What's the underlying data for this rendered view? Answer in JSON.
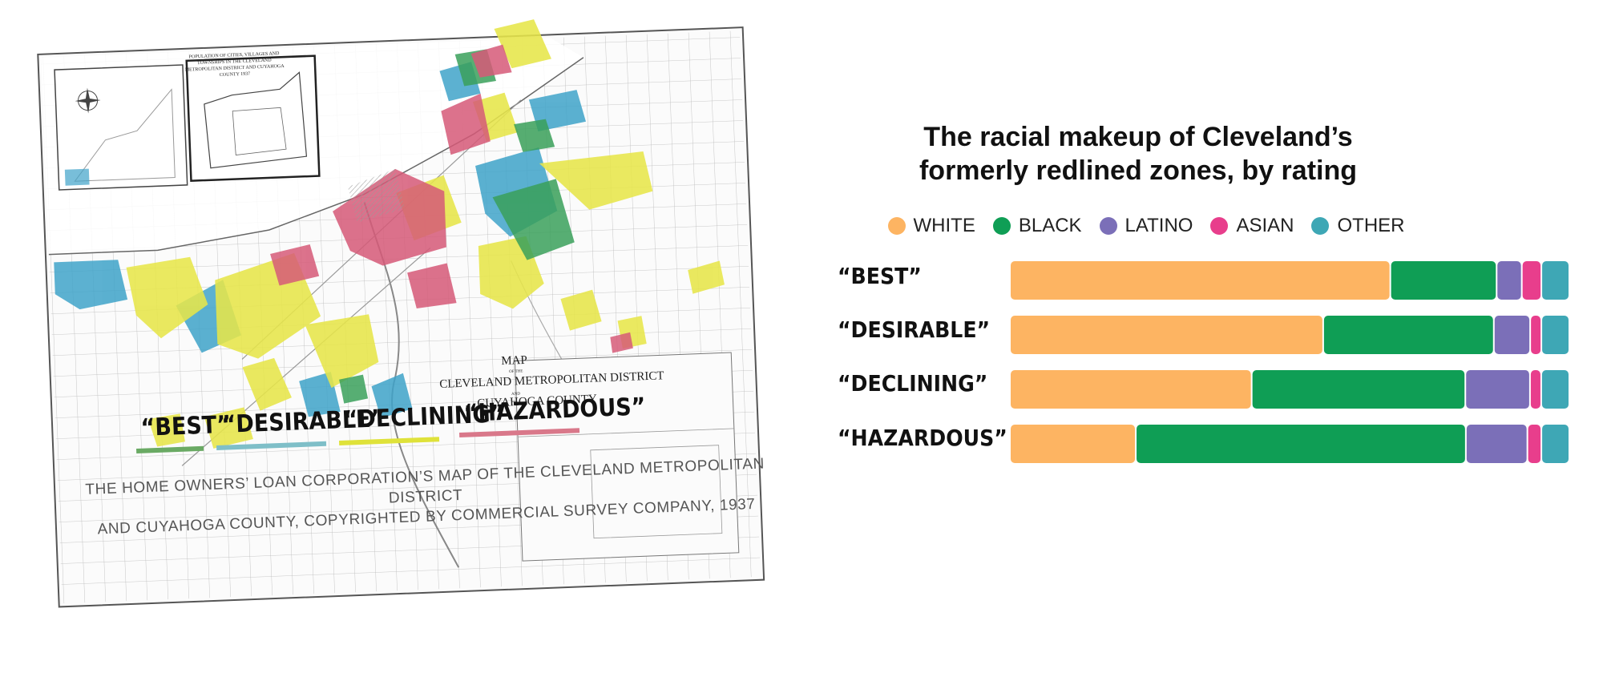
{
  "map": {
    "title_map": "MAP",
    "title_of_the": "OF THE",
    "title_district": "CLEVELAND METROPOLITAN DISTRICT",
    "title_and": "AND",
    "title_county": "CUYAHOGA COUNTY",
    "inset_title": "POPULATION OF CITIES, VILLAGES AND TOWNSHIPS IN THE CLEVELAND METROPOLITAN DISTRICT AND CUYAHOGA COUNTY 1937",
    "legend": [
      {
        "label": "“BEST”",
        "color": "#6aaa64"
      },
      {
        "label": "“DESIRABLE”",
        "color": "#7fbfc8"
      },
      {
        "label": "“DECLINING”",
        "color": "#dfe23a"
      },
      {
        "label": "“HAZARDOUS”",
        "color": "#d9788a"
      }
    ],
    "zone_colors": {
      "best": "#3aa05a",
      "desirable": "#3fa3c9",
      "declining": "#e7e64a",
      "hazardous": "#d65a78"
    },
    "caption_line1": "The Home Owners’ Loan Corporation’s map of the Cleveland Metropolitan District",
    "caption_line2": "and Cuyahoga County, copyrighted by Commercial Survey Company, 1937"
  },
  "chart_data": {
    "type": "bar",
    "orientation": "horizontal",
    "stacked": true,
    "normalized": true,
    "title": "The racial makeup of Cleveland’s formerly redlined zones, by rating",
    "categories": [
      "“BEST”",
      "“DESIRABLE”",
      "“DECLINING”",
      "“HAZARDOUS”"
    ],
    "series": [
      {
        "name": "White",
        "color": "#fdb462",
        "values": [
          68,
          56,
          43,
          22.5
        ]
      },
      {
        "name": "Black",
        "color": "#0f9e55",
        "values": [
          19,
          30.5,
          38,
          59
        ]
      },
      {
        "name": "Latino",
        "color": "#7b6fb8",
        "values": [
          4.5,
          6.5,
          11.5,
          11
        ]
      },
      {
        "name": "Asian",
        "color": "#e83e8c",
        "values": [
          3.5,
          2,
          2,
          2.5
        ]
      },
      {
        "name": "Other",
        "color": "#3ea7b5",
        "values": [
          5,
          5,
          5,
          5
        ]
      }
    ],
    "xlim": [
      0,
      100
    ],
    "legend_position": "top",
    "grid": false
  }
}
